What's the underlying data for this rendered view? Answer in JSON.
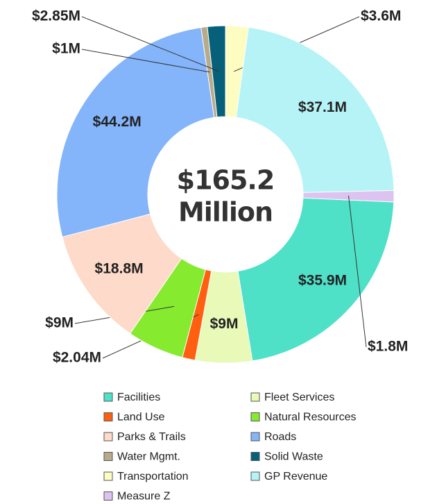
{
  "chart_data": {
    "type": "donut",
    "categories": [
      "Facilities",
      "Fleet Services",
      "Land Use",
      "Natural Resources",
      "Parks & Trails",
      "Roads",
      "Water Mgmt.",
      "Solid Waste",
      "Transportation",
      "GP Revenue",
      "Measure Z"
    ],
    "values": [
      35.9,
      9,
      2.04,
      9,
      18.8,
      44.2,
      1,
      2.85,
      3.6,
      37.1,
      1.8
    ],
    "value_labels": [
      "$35.9M",
      "$9M",
      "$2.04M",
      "$9M",
      "$18.8M",
      "$44.2M",
      "$1M",
      "$2.85M",
      "$3.6M",
      "$37.1M",
      "$1.8M"
    ],
    "colors": [
      "#4fe0c8",
      "#e8f9b8",
      "#ff5f0f",
      "#86ea2f",
      "#fddac9",
      "#84b4fa",
      "#b8ab8c",
      "#06607a",
      "#fdfdc2",
      "#b5f3f6",
      "#dcc3f0"
    ],
    "center_text": [
      "$165.2",
      "Million"
    ],
    "legend": true
  }
}
